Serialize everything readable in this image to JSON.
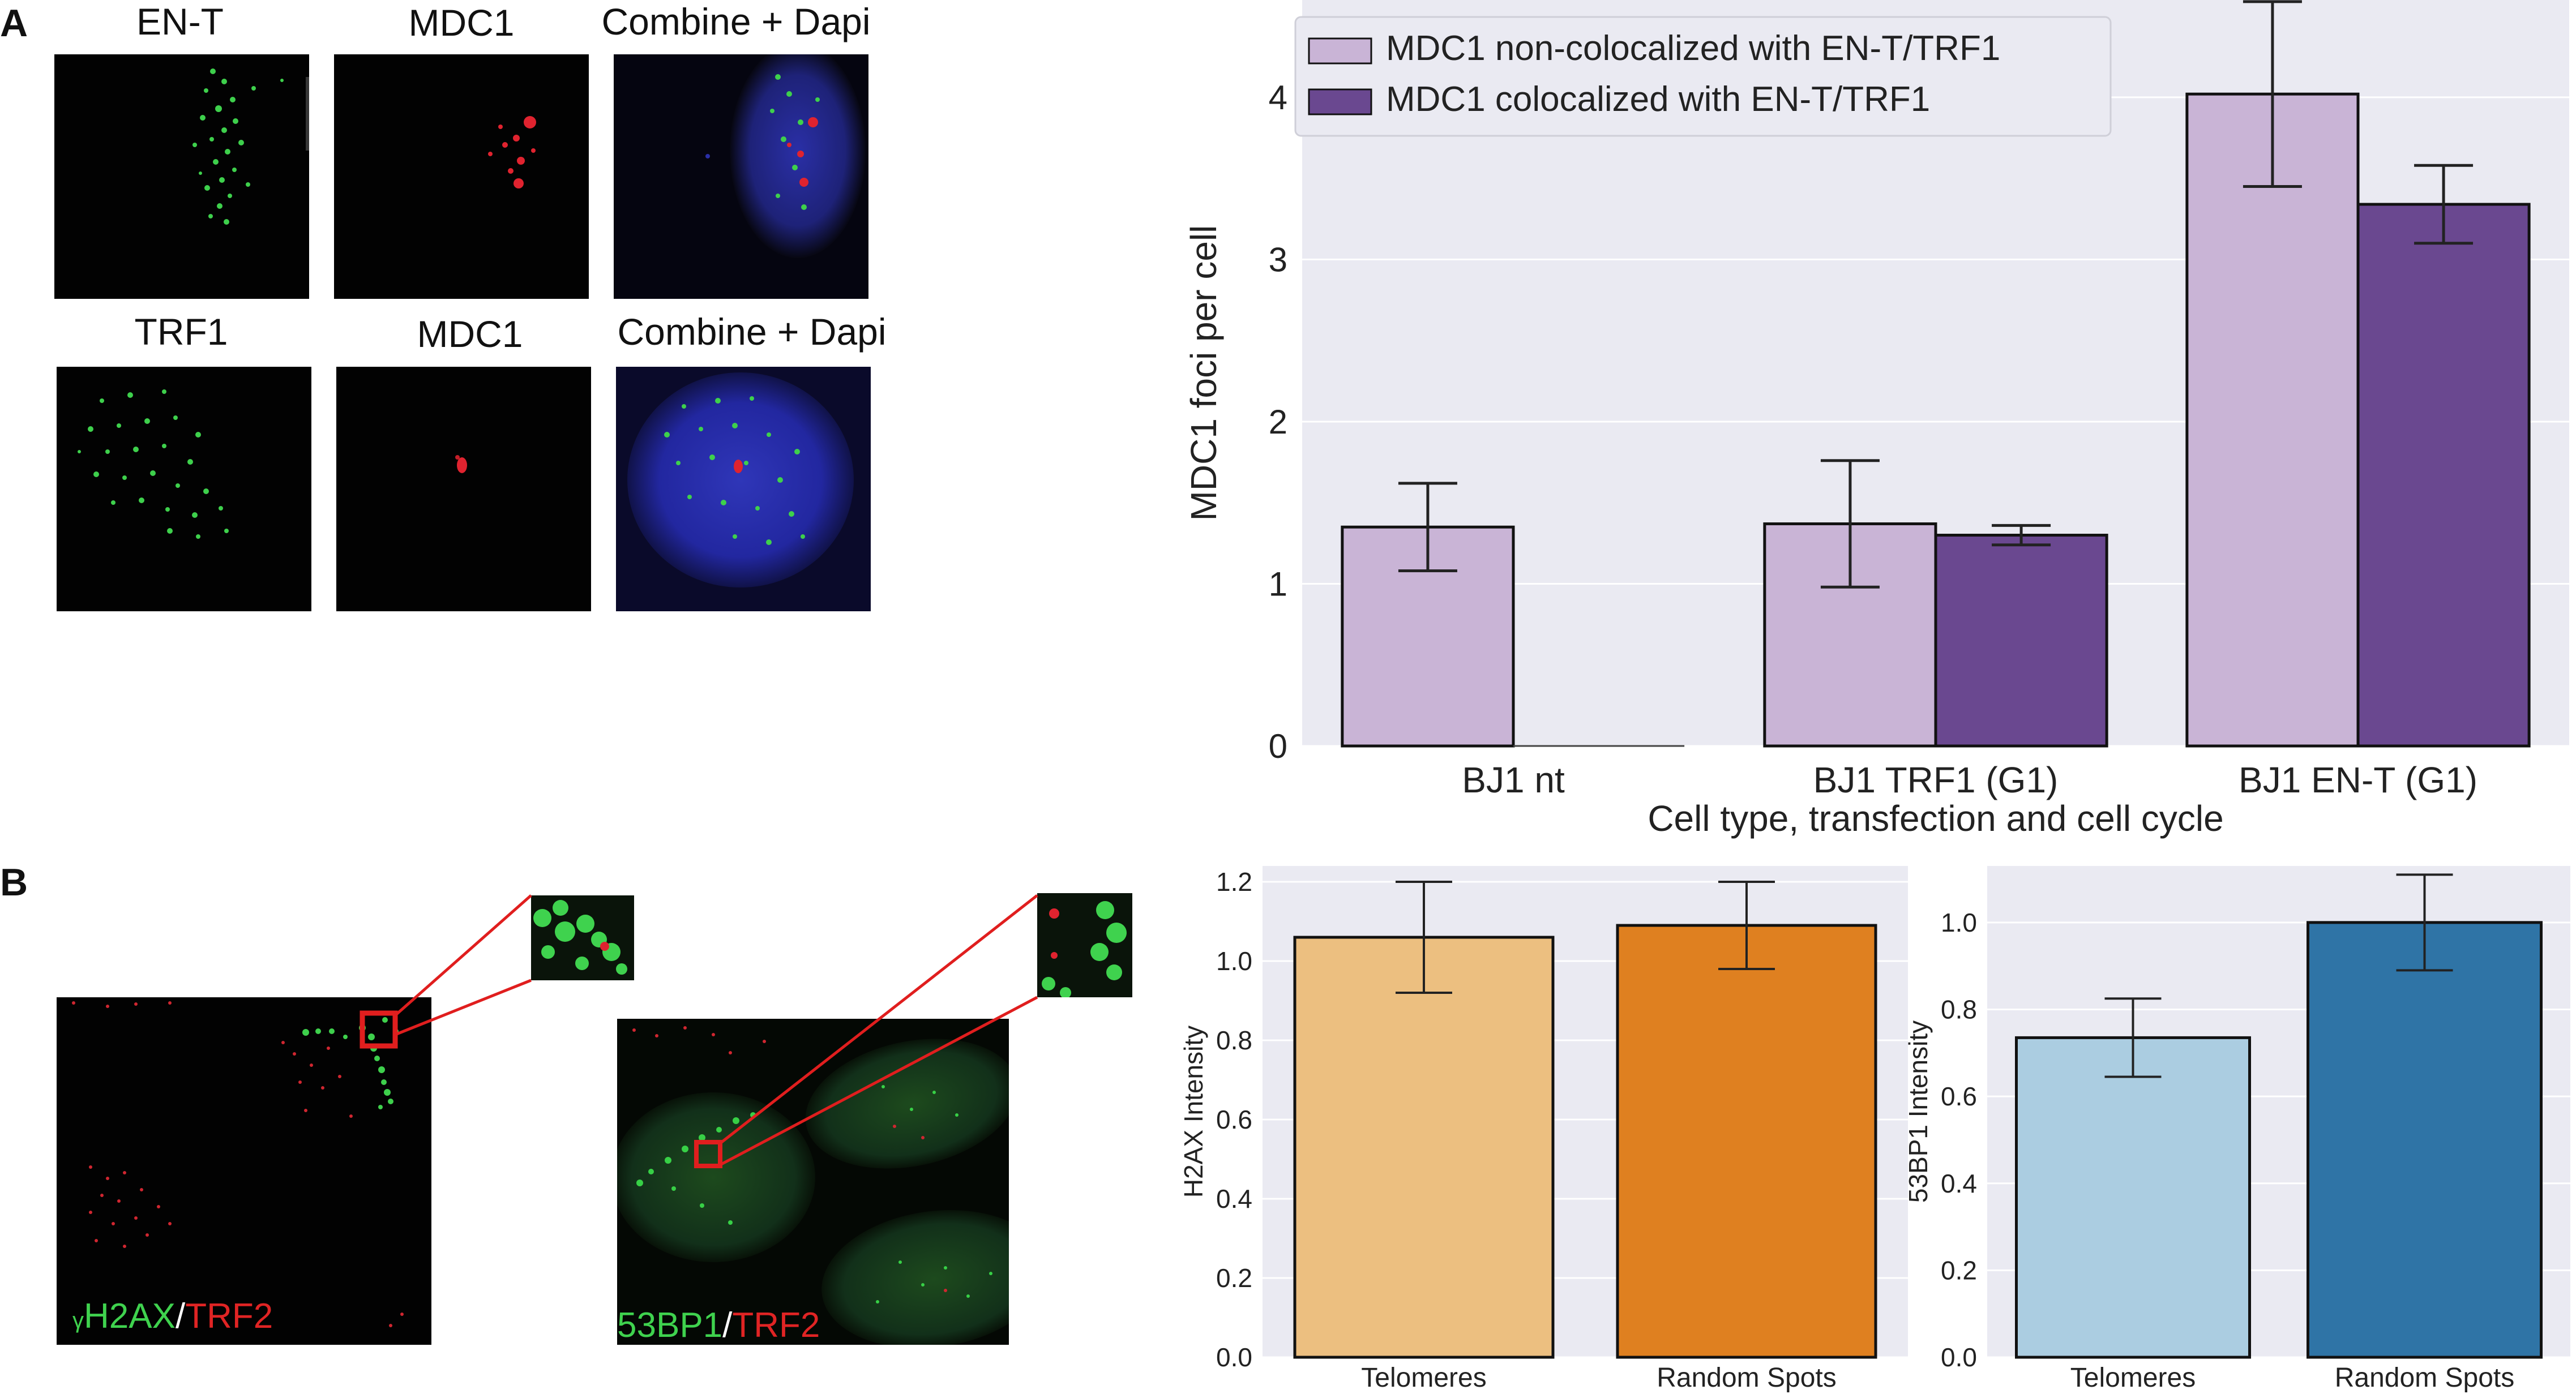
{
  "panels": {
    "a_letter": "A",
    "b_letter": "B"
  },
  "panel_a": {
    "row1_labels": [
      "EN-T",
      "MDC1",
      "Combine + Dapi"
    ],
    "row2_labels": [
      "TRF1",
      "MDC1",
      "Combine + Dapi"
    ]
  },
  "panel_b": {
    "left_overlay": {
      "prefix_small": "γ",
      "green": "H2AX",
      "slash": "/",
      "red": "TRF2"
    },
    "right_overlay": {
      "green": "53BP1",
      "slash": "/",
      "red": "TRF2"
    }
  },
  "colors": {
    "light_purple": "#c9b4d6",
    "dark_purple": "#6a4890",
    "light_orange": "#ecbf80",
    "dark_orange": "#df8020",
    "light_blue": "#abcde1",
    "dark_blue": "#2f74a6",
    "plot_bg": "#eaeaf2",
    "marker_green": "#33dd44",
    "marker_red": "#e02424"
  },
  "chart_data": [
    {
      "type": "bar",
      "title": "",
      "xlabel": "Cell type, transfection and cell cycle",
      "ylabel": "MDC1 foci per cell",
      "categories": [
        "BJ1 nt",
        "BJ1 TRF1 (G1)",
        "BJ1 EN-T (G1)"
      ],
      "ylim": [
        0,
        4.6
      ],
      "yticks": [
        0,
        1,
        2,
        3,
        4
      ],
      "grid": true,
      "legend_position": "top-left",
      "series": [
        {
          "name": "MDC1 non-colocalized with EN-T/TRF1",
          "values": [
            1.35,
            1.37,
            4.02
          ],
          "errors": [
            0.27,
            0.39,
            0.57
          ]
        },
        {
          "name": "MDC1 colocalized with EN-T/TRF1",
          "values": [
            0.0,
            1.3,
            3.34
          ],
          "errors": [
            0.0,
            0.06,
            0.24
          ]
        }
      ]
    },
    {
      "type": "bar",
      "title": "",
      "xlabel": "",
      "ylabel": "H2AX Intensity",
      "categories": [
        "Telomeres",
        "Random Spots"
      ],
      "ylim": [
        0,
        1.24
      ],
      "yticks": [
        "0.0",
        "0.2",
        "0.4",
        "0.6",
        "0.8",
        "1.0",
        "1.2"
      ],
      "grid": true,
      "values": [
        1.06,
        1.09
      ],
      "errors": [
        0.14,
        0.11
      ]
    },
    {
      "type": "bar",
      "title": "",
      "xlabel": "",
      "ylabel": "53BP1 Intensity",
      "categories": [
        "Telomeres",
        "Random Spots"
      ],
      "ylim": [
        0,
        1.13
      ],
      "yticks": [
        "0.0",
        "0.2",
        "0.4",
        "0.6",
        "0.8",
        "1.0"
      ],
      "grid": true,
      "values": [
        0.735,
        1.0
      ],
      "errors": [
        0.09,
        0.11
      ]
    }
  ]
}
